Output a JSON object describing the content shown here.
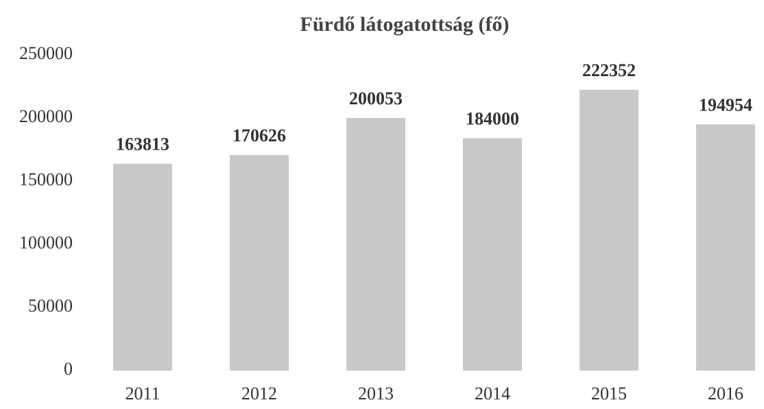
{
  "chart_data": {
    "type": "bar",
    "title": "Fürdő látogatottság (fő)",
    "categories": [
      "2011",
      "2012",
      "2013",
      "2014",
      "2015",
      "2016"
    ],
    "values": [
      163813,
      170626,
      200053,
      184000,
      222352,
      194954
    ],
    "color": "#c9c9c9",
    "ylim": [
      0,
      250000
    ],
    "yticks": [
      0,
      50000,
      100000,
      150000,
      200000,
      250000
    ],
    "grid": false
  }
}
